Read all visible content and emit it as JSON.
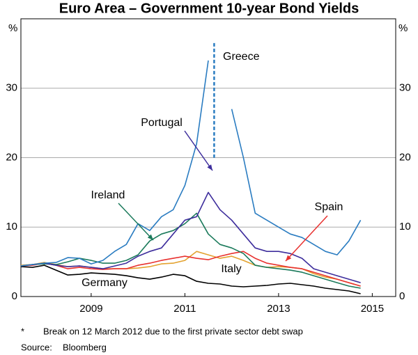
{
  "chart_data": {
    "type": "line",
    "title": "Euro Area – Government 10-year Bond Yields",
    "y_unit": "%",
    "x": [
      2008,
      2008.25,
      2008.5,
      2008.75,
      2009,
      2009.25,
      2009.5,
      2009.75,
      2010,
      2010.25,
      2010.5,
      2010.75,
      2011,
      2011.25,
      2011.5,
      2011.75,
      2012,
      2012.25,
      2012.5,
      2012.75,
      2013,
      2013.25,
      2013.5,
      2013.75,
      2014,
      2014.25,
      2014.5,
      2014.75,
      2015,
      2015.25
    ],
    "series": [
      {
        "name": "Greece",
        "color": "#2a7cc1",
        "values": [
          4.4,
          4.6,
          4.8,
          4.9,
          5.6,
          5.5,
          4.7,
          5.2,
          6.5,
          7.5,
          10.5,
          9.5,
          11.5,
          12.5,
          16,
          22,
          34,
          null,
          27,
          20,
          12,
          11,
          10,
          9,
          8.5,
          7.5,
          6.5,
          6,
          8,
          11
        ]
      },
      {
        "name": "Portugal",
        "color": "#3d2d9c",
        "values": [
          4.4,
          4.6,
          4.8,
          4.5,
          4.3,
          4.4,
          4.2,
          4.0,
          4.4,
          4.8,
          5.8,
          6.5,
          7,
          9,
          11,
          11.5,
          15,
          12.5,
          11,
          9,
          7,
          6.5,
          6.5,
          6.2,
          5.5,
          4,
          3.5,
          3.0,
          2.5,
          2.0
        ]
      },
      {
        "name": "Ireland",
        "color": "#1b7a5b",
        "values": [
          4.4,
          4.6,
          4.7,
          4.6,
          5.0,
          5.5,
          5.2,
          4.8,
          4.8,
          5.2,
          6,
          8,
          9,
          9.5,
          10.5,
          12,
          9,
          7.5,
          7,
          6.2,
          4.5,
          4.2,
          4,
          3.8,
          3.5,
          3,
          2.5,
          2.0,
          1.5,
          1.2
        ]
      },
      {
        "name": "Spain",
        "color": "#e8312f",
        "values": [
          4.4,
          4.5,
          4.8,
          4.5,
          4.0,
          4.2,
          4.0,
          3.9,
          4.0,
          4.0,
          4.5,
          4.8,
          5.2,
          5.5,
          5.8,
          5.5,
          5.3,
          5.8,
          6.2,
          6.5,
          5.5,
          4.8,
          4.5,
          4.2,
          4.0,
          3.5,
          3.0,
          2.5,
          2.0,
          1.5
        ]
      },
      {
        "name": "Italy",
        "color": "#e3a22f",
        "values": [
          4.5,
          4.6,
          4.9,
          4.6,
          4.3,
          4.4,
          4.2,
          4.0,
          4.0,
          4.0,
          4.1,
          4.3,
          4.7,
          4.8,
          5.2,
          6.5,
          6.0,
          5.5,
          5.8,
          5.2,
          4.5,
          4.2,
          4.3,
          4.2,
          4.0,
          3.3,
          2.8,
          2.5,
          2.0,
          1.5
        ]
      },
      {
        "name": "Germany",
        "color": "#000000",
        "values": [
          4.3,
          4.2,
          4.5,
          3.8,
          3.1,
          3.2,
          3.4,
          3.3,
          3.2,
          3.0,
          2.7,
          2.5,
          2.8,
          3.2,
          3.0,
          2.2,
          1.9,
          1.8,
          1.5,
          1.4,
          1.5,
          1.6,
          1.8,
          1.9,
          1.7,
          1.5,
          1.2,
          1.0,
          0.8,
          0.4
        ]
      }
    ],
    "xlim": [
      2008,
      2016
    ],
    "xticks": [
      {
        "value": 2009.5,
        "label": "2009"
      },
      {
        "value": 2011.5,
        "label": "2011"
      },
      {
        "value": 2013.5,
        "label": "2013"
      },
      {
        "value": 2015.5,
        "label": "2015"
      }
    ],
    "ylim": [
      0,
      40
    ],
    "yticks": [
      0,
      10,
      20,
      30
    ],
    "grid": true,
    "footnote": {
      "marker": "*",
      "text": "Break on 12 March 2012 due to the first private sector debt swap"
    },
    "source": {
      "label": "Source:",
      "text": "Bloomberg"
    }
  }
}
